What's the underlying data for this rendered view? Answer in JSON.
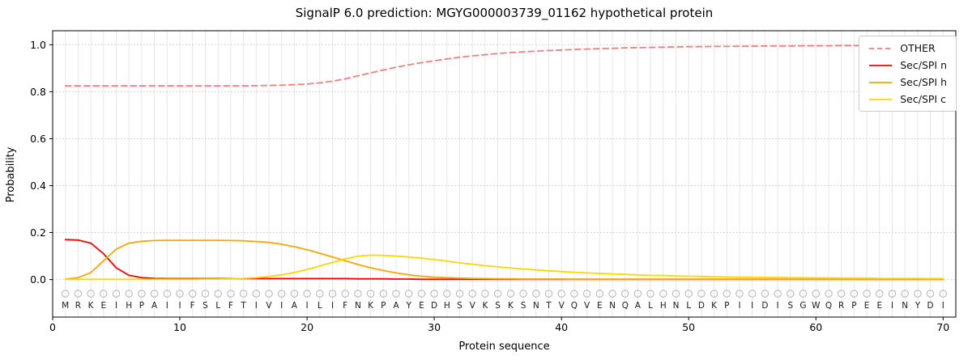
{
  "chart_data": {
    "type": "line",
    "title": "SignalP 6.0 prediction: MGYG000003739_01162 hypothetical protein",
    "xlabel": "Protein sequence",
    "ylabel": "Probability",
    "xlim": [
      0,
      71
    ],
    "ylim": [
      -0.16,
      1.06
    ],
    "xticks": [
      0,
      10,
      20,
      30,
      40,
      50,
      60,
      70
    ],
    "yticks": [
      0.0,
      0.2,
      0.4,
      0.6,
      0.8,
      1.0
    ],
    "grid": true,
    "legend_position": "upper right",
    "x_positions": {
      "start": 1,
      "end": 70,
      "step": 1
    },
    "sequence": [
      "M",
      "R",
      "K",
      "E",
      "I",
      "H",
      "P",
      "A",
      "I",
      "I",
      "F",
      "S",
      "L",
      "F",
      "T",
      "I",
      "V",
      "I",
      "A",
      "I",
      "L",
      "I",
      "F",
      "N",
      "K",
      "P",
      "A",
      "Y",
      "E",
      "D",
      "H",
      "S",
      "V",
      "K",
      "S",
      "K",
      "S",
      "N",
      "T",
      "V",
      "Q",
      "V",
      "E",
      "N",
      "Q",
      "A",
      "L",
      "H",
      "N",
      "L",
      "D",
      "K",
      "P",
      "I",
      "I",
      "D",
      "I",
      "S",
      "G",
      "W",
      "Q",
      "R",
      "P",
      "E",
      "E",
      "I",
      "N",
      "Y",
      "D",
      "I"
    ],
    "marker_symbol": "circle",
    "marker_color": "#b3b3b3",
    "series": [
      {
        "name": "OTHER",
        "color": "#f08080",
        "line_style": "dashed",
        "values": [
          0.825,
          0.825,
          0.825,
          0.825,
          0.825,
          0.825,
          0.825,
          0.825,
          0.825,
          0.825,
          0.825,
          0.825,
          0.825,
          0.825,
          0.825,
          0.826,
          0.827,
          0.828,
          0.83,
          0.833,
          0.838,
          0.845,
          0.855,
          0.868,
          0.88,
          0.893,
          0.905,
          0.915,
          0.924,
          0.932,
          0.94,
          0.947,
          0.953,
          0.958,
          0.963,
          0.967,
          0.97,
          0.973,
          0.976,
          0.978,
          0.98,
          0.982,
          0.984,
          0.985,
          0.987,
          0.988,
          0.989,
          0.99,
          0.991,
          0.992,
          0.992,
          0.993,
          0.993,
          0.994,
          0.994,
          0.995,
          0.995,
          0.995,
          0.996,
          0.996,
          0.996,
          0.997,
          0.997,
          0.997,
          0.997,
          0.997,
          0.998,
          0.998,
          0.998,
          0.998
        ]
      },
      {
        "name": "Sec/SPI n",
        "color": "#ff0000",
        "line_style": "solid",
        "values": [
          0.17,
          0.168,
          0.155,
          0.11,
          0.05,
          0.018,
          0.008,
          0.005,
          0.004,
          0.004,
          0.004,
          0.004,
          0.004,
          0.004,
          0.004,
          0.004,
          0.004,
          0.004,
          0.004,
          0.004,
          0.004,
          0.004,
          0.004,
          0.003,
          0.003,
          0.003,
          0.002,
          0.002,
          0.001,
          0.001,
          0.001,
          0.001,
          0.001,
          0.001,
          0.001,
          0.001,
          0.001,
          0.001,
          0.001,
          0.001,
          0.001,
          0.001,
          0.001,
          0.001,
          0.001,
          0.001,
          0.001,
          0.001,
          0.001,
          0.001,
          0.001,
          0.001,
          0.001,
          0.001,
          0.001,
          0.001,
          0.001,
          0.001,
          0.001,
          0.001,
          0.001,
          0.001,
          0.001,
          0.001,
          0.001,
          0.001,
          0.001,
          0.001,
          0.001,
          0.001
        ]
      },
      {
        "name": "Sec/SPI h",
        "color": "#ffa500",
        "line_style": "solid",
        "values": [
          0.002,
          0.008,
          0.03,
          0.08,
          0.13,
          0.155,
          0.163,
          0.166,
          0.167,
          0.167,
          0.167,
          0.167,
          0.167,
          0.166,
          0.165,
          0.162,
          0.158,
          0.15,
          0.14,
          0.127,
          0.112,
          0.096,
          0.08,
          0.064,
          0.05,
          0.038,
          0.028,
          0.02,
          0.014,
          0.01,
          0.008,
          0.006,
          0.005,
          0.004,
          0.003,
          0.003,
          0.002,
          0.002,
          0.002,
          0.002,
          0.001,
          0.001,
          0.001,
          0.001,
          0.001,
          0.001,
          0.001,
          0.001,
          0.001,
          0.001,
          0.001,
          0.001,
          0.001,
          0.001,
          0.001,
          0.001,
          0.001,
          0.001,
          0.001,
          0.001,
          0.001,
          0.001,
          0.001,
          0.001,
          0.001,
          0.001,
          0.001,
          0.001,
          0.001,
          0.001
        ]
      },
      {
        "name": "Sec/SPI c",
        "color": "#ffd700",
        "line_style": "solid",
        "values": [
          0.001,
          0.001,
          0.001,
          0.001,
          0.001,
          0.001,
          0.001,
          0.001,
          0.001,
          0.001,
          0.001,
          0.002,
          0.002,
          0.003,
          0.005,
          0.008,
          0.013,
          0.02,
          0.03,
          0.043,
          0.058,
          0.073,
          0.088,
          0.1,
          0.104,
          0.103,
          0.1,
          0.096,
          0.091,
          0.085,
          0.078,
          0.071,
          0.065,
          0.059,
          0.054,
          0.049,
          0.045,
          0.041,
          0.037,
          0.034,
          0.031,
          0.028,
          0.026,
          0.024,
          0.022,
          0.02,
          0.018,
          0.017,
          0.015,
          0.014,
          0.013,
          0.012,
          0.011,
          0.01,
          0.01,
          0.009,
          0.009,
          0.008,
          0.008,
          0.007,
          0.007,
          0.006,
          0.006,
          0.006,
          0.005,
          0.005,
          0.005,
          0.005,
          0.004,
          0.004
        ]
      }
    ]
  }
}
